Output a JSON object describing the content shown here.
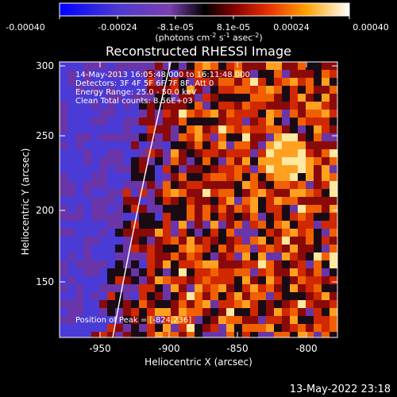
{
  "colorbar": {
    "tick_labels": [
      "-0.00040",
      "-0.00024",
      "-8.1e-05",
      "8.1e-05",
      "0.00024",
      "0.00040"
    ],
    "units_text": "(photons cm",
    "units_sup1": "-2",
    "units_mid": " s",
    "units_sup2": "-1",
    "units_end": " asec",
    "units_sup3": "-2",
    "units_close": ")"
  },
  "plot": {
    "title": "Reconstructed RHESSI Image",
    "info_lines": [
      "14-May-2013 16:05:48.000 to 16:11:48.000",
      "Detectors: 3F 4F 5F 6F 7F 8F, Att 0",
      "Energy Range: 25.0 - 50.0 keV",
      "Clean     Total counts: 8.56E+03"
    ],
    "peak_label": "Position of Peak = [-824,236]",
    "xlabel": "Heliocentric X (arcsec)",
    "ylabel": "Heliocentric Y (arcsec)",
    "x_ticks": [
      "-950",
      "-900",
      "-850",
      "-800"
    ],
    "y_ticks": [
      "300",
      "250",
      "200",
      "150"
    ],
    "footer": "13-May-2022 23:18"
  }
}
